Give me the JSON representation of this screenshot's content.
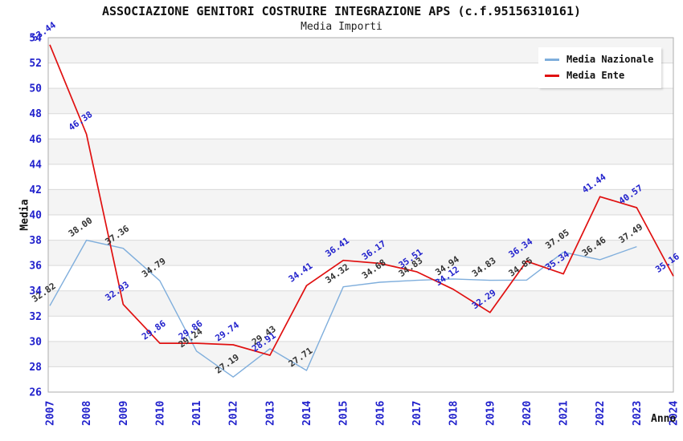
{
  "chart_data": {
    "type": "line",
    "title": "ASSOCIAZIONE GENITORI COSTRUIRE INTEGRAZIONE APS (c.f.95156310161)",
    "subtitle": "Media Importi",
    "xlabel": "Anno",
    "ylabel": "Media",
    "ylim": [
      26,
      54
    ],
    "ytick_step": 2,
    "grid": "horizontal-bands",
    "legend_position": "top-right",
    "categories": [
      "2007",
      "2008",
      "2009",
      "2010",
      "2011",
      "2012",
      "2013",
      "2014",
      "2015",
      "2016",
      "2017",
      "2018",
      "2019",
      "2020",
      "2021",
      "2022",
      "2023",
      "2024"
    ],
    "series": [
      {
        "name": "Media Nazionale",
        "line_color": "#7FAEDC",
        "label_color": "#333333",
        "values": [
          32.82,
          38.0,
          37.36,
          34.79,
          29.24,
          27.19,
          29.43,
          27.71,
          34.32,
          34.68,
          34.83,
          34.94,
          34.83,
          34.85,
          37.05,
          36.46,
          37.49,
          null
        ]
      },
      {
        "name": "Media Ente",
        "line_color": "#E01010",
        "label_color": "#2121CC",
        "values": [
          53.44,
          46.38,
          32.93,
          29.86,
          29.86,
          29.74,
          28.91,
          34.41,
          36.41,
          36.17,
          35.51,
          34.12,
          32.29,
          36.34,
          35.34,
          41.44,
          40.57,
          35.16
        ]
      }
    ],
    "colors": {
      "axis_text": "#2121CC",
      "band": "#F4F4F4",
      "gridline": "#D9D9D9",
      "plot_border": "#ADADAD",
      "background": "#FFFFFF"
    }
  }
}
